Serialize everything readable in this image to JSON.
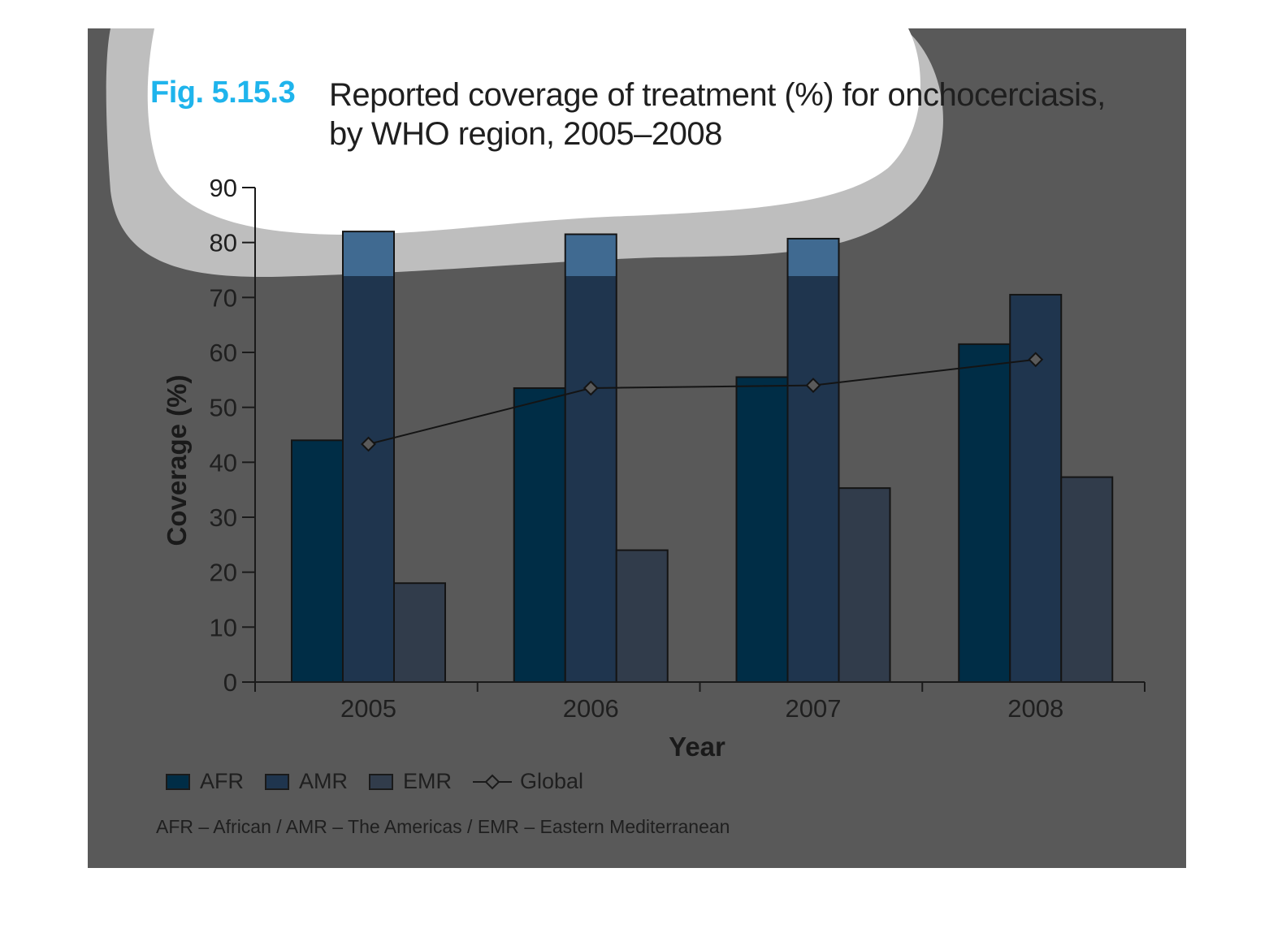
{
  "figure": {
    "label": "Fig. 5.15.3",
    "title_line1": "Reported coverage of treatment (%) for onchocerciasis,",
    "title_line2": "by WHO region, 2005–2008",
    "footnote": "AFR – African / AMR – The Americas / EMR – Eastern Mediterranean"
  },
  "colors": {
    "panel_bg": "#595959",
    "fig_label": "#1fb4ec",
    "afr": "#002d46",
    "amr": "#1f354e",
    "emr": "#313c4b",
    "amr_highlight": "#46739d",
    "cloud_fill": "#ffffff",
    "cloud_halo": "#bebebe"
  },
  "chart_data": {
    "type": "bar",
    "categories": [
      "2005",
      "2006",
      "2007",
      "2008"
    ],
    "series": [
      {
        "name": "AFR",
        "values": [
          44,
          53.5,
          55.5,
          61.5
        ]
      },
      {
        "name": "AMR",
        "values": [
          82,
          81.5,
          80.7,
          70.5
        ]
      },
      {
        "name": "EMR",
        "values": [
          18,
          24,
          35.3,
          37.3
        ]
      }
    ],
    "line_series": {
      "name": "Global",
      "values": [
        43.3,
        53.5,
        54,
        58.7
      ]
    },
    "xlabel": "Year",
    "ylabel": "Coverage (%)",
    "ylim": [
      0,
      90
    ],
    "yticks": [
      0,
      10,
      20,
      30,
      40,
      50,
      60,
      70,
      80,
      90
    ],
    "grid": false,
    "legend_placement": "bottom-left"
  }
}
